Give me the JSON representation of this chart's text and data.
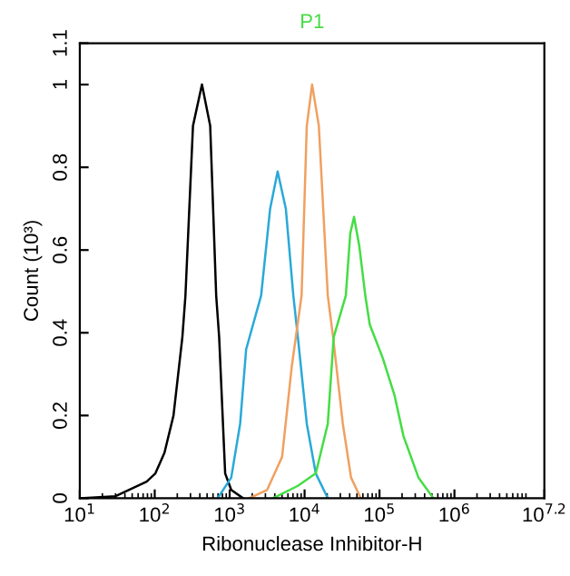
{
  "chart_data": {
    "type": "line",
    "title": "P1",
    "xlabel": "Ribonuclease Inhibitor-H",
    "ylabel": "Count (10³)",
    "log": "x",
    "grid": false,
    "legend": false,
    "marker": "none",
    "line_style": "solid",
    "xlim": [
      10,
      15848932
    ],
    "xticks": [
      {
        "value": 10,
        "label": "10$^{1}$"
      },
      {
        "value": 100,
        "label": "10$^{2}$"
      },
      {
        "value": 1000,
        "label": "10$^{3}$"
      },
      {
        "value": 10000,
        "label": "10$^{4}$"
      },
      {
        "value": 100000,
        "label": "10$^{5}$"
      },
      {
        "value": 1000000,
        "label": "10$^{6}$"
      },
      {
        "value": 15848932,
        "label": "10$^{7.2}$"
      }
    ],
    "ylim": [
      0,
      1.1
    ],
    "yticks": [
      0,
      0.2,
      0.4,
      0.6,
      0.8,
      1,
      1.1
    ],
    "series": [
      {
        "color": "#000000",
        "x": [
          10,
          30,
          78,
          102,
          135,
          178,
          234,
          257,
          324,
          427,
          550,
          661,
          724,
          871,
          1050,
          1510
        ],
        "values": [
          0,
          0.005,
          0.04,
          0.06,
          0.11,
          0.2,
          0.39,
          0.49,
          0.9,
          1.0,
          0.9,
          0.49,
          0.39,
          0.06,
          0.02,
          0
        ]
      },
      {
        "color": "#29a9d8",
        "x": [
          692,
          1050,
          1380,
          1660,
          2630,
          3470,
          4370,
          5620,
          7080,
          8130,
          10700,
          14100,
          20400
        ],
        "values": [
          0,
          0.05,
          0.18,
          0.36,
          0.49,
          0.7,
          0.79,
          0.7,
          0.49,
          0.39,
          0.18,
          0.06,
          0
        ]
      },
      {
        "color": "#f0a060",
        "x": [
          1820,
          3160,
          5010,
          6760,
          9120,
          10700,
          12600,
          15500,
          20400,
          24000,
          32400,
          41700,
          56200
        ],
        "values": [
          0,
          0.02,
          0.1,
          0.32,
          0.49,
          0.9,
          1.0,
          0.9,
          0.49,
          0.39,
          0.18,
          0.05,
          0
        ]
      },
      {
        "color": "#44dd44",
        "x": [
          3800,
          8130,
          14100,
          20400,
          24500,
          35500,
          40700,
          45700,
          53700,
          64600,
          74100,
          110000,
          158000,
          209000,
          331000,
          525000
        ],
        "values": [
          0,
          0.03,
          0.06,
          0.18,
          0.39,
          0.49,
          0.64,
          0.68,
          0.61,
          0.49,
          0.42,
          0.34,
          0.25,
          0.15,
          0.05,
          0
        ]
      }
    ]
  }
}
